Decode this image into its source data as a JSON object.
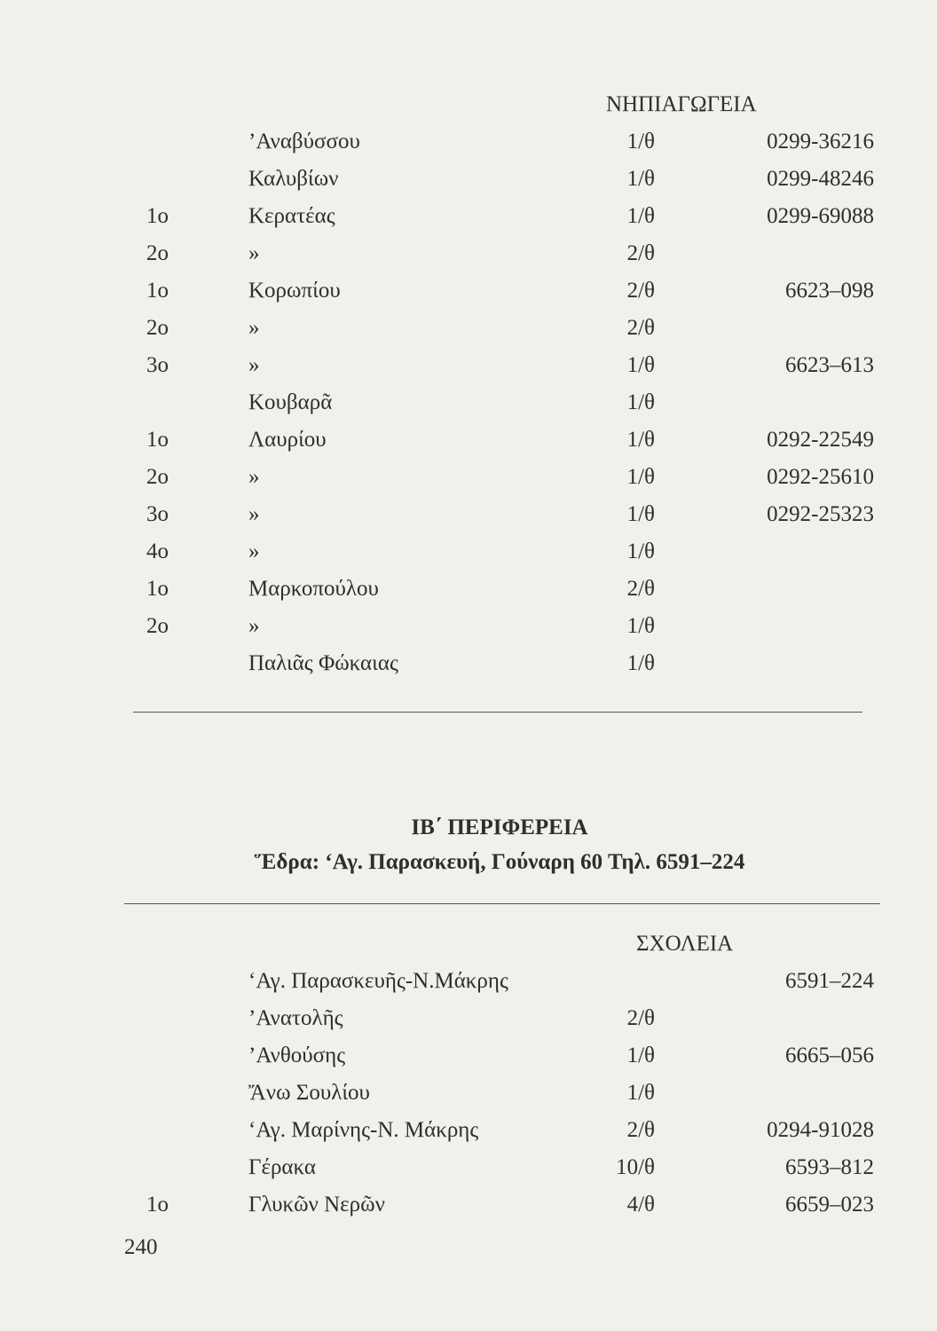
{
  "section1": {
    "heading": "ΝΗΠΙΑΓΩΓΕΙΑ",
    "rows": [
      {
        "num": "",
        "name": "’Αναβύσσου",
        "classes": "1/θ",
        "phone": "0299-36216"
      },
      {
        "num": "",
        "name": "Καλυβίων",
        "classes": "1/θ",
        "phone": "0299-48246"
      },
      {
        "num": "1ο",
        "name": "Κερατέας",
        "classes": "1/θ",
        "phone": "0299-69088"
      },
      {
        "num": "2ο",
        "name": "»",
        "classes": "2/θ",
        "phone": ""
      },
      {
        "num": "1ο",
        "name": "Κορωπίου",
        "classes": "2/θ",
        "phone": "6623–098"
      },
      {
        "num": "2ο",
        "name": "»",
        "classes": "2/θ",
        "phone": ""
      },
      {
        "num": "3ο",
        "name": "»",
        "classes": "1/θ",
        "phone": "6623–613"
      },
      {
        "num": "",
        "name": "Κουβαρᾶ",
        "classes": "1/θ",
        "phone": ""
      },
      {
        "num": "1ο",
        "name": "Λαυρίου",
        "classes": "1/θ",
        "phone": "0292-22549"
      },
      {
        "num": "2ο",
        "name": "»",
        "classes": "1/θ",
        "phone": "0292-25610"
      },
      {
        "num": "3ο",
        "name": "»",
        "classes": "1/θ",
        "phone": "0292-25323"
      },
      {
        "num": "4ο",
        "name": "»",
        "classes": "1/θ",
        "phone": ""
      },
      {
        "num": "1ο",
        "name": "Μαρκοπούλου",
        "classes": "2/θ",
        "phone": ""
      },
      {
        "num": "2ο",
        "name": "»",
        "classes": "1/θ",
        "phone": ""
      },
      {
        "num": "",
        "name": "Παλιᾶς Φώκαιας",
        "classes": "1/θ",
        "phone": ""
      }
    ]
  },
  "region": {
    "title": "ΙΒ΄ ΠΕΡΙΦΕΡΕΙΑ",
    "seat": "Ἕδρα: ‘Αγ. Παρασκευή, Γούναρη 60 Τηλ. 6591–224"
  },
  "section2": {
    "heading": "ΣΧΟΛΕΙΑ",
    "rows": [
      {
        "num": "",
        "name": "‘Αγ. Παρασκευῆς-Ν.Μάκρης",
        "classes": "",
        "phone": "6591–224"
      },
      {
        "num": "",
        "name": "’Ανατολῆς",
        "classes": "2/θ",
        "phone": ""
      },
      {
        "num": "",
        "name": "’Ανθούσης",
        "classes": "1/θ",
        "phone": "6665–056"
      },
      {
        "num": "",
        "name": "Ἄνω Σουλίου",
        "classes": "1/θ",
        "phone": ""
      },
      {
        "num": "",
        "name": "‘Αγ. Μαρίνης-Ν. Μάκρης",
        "classes": "2/θ",
        "phone": "0294-91028"
      },
      {
        "num": "",
        "name": "Γέρακα",
        "classes": "10/θ",
        "phone": "6593–812"
      },
      {
        "num": "1ο",
        "name": "Γλυκῶν Νερῶν",
        "classes": "4/θ",
        "phone": "6659–023"
      }
    ]
  },
  "page_number": "240"
}
